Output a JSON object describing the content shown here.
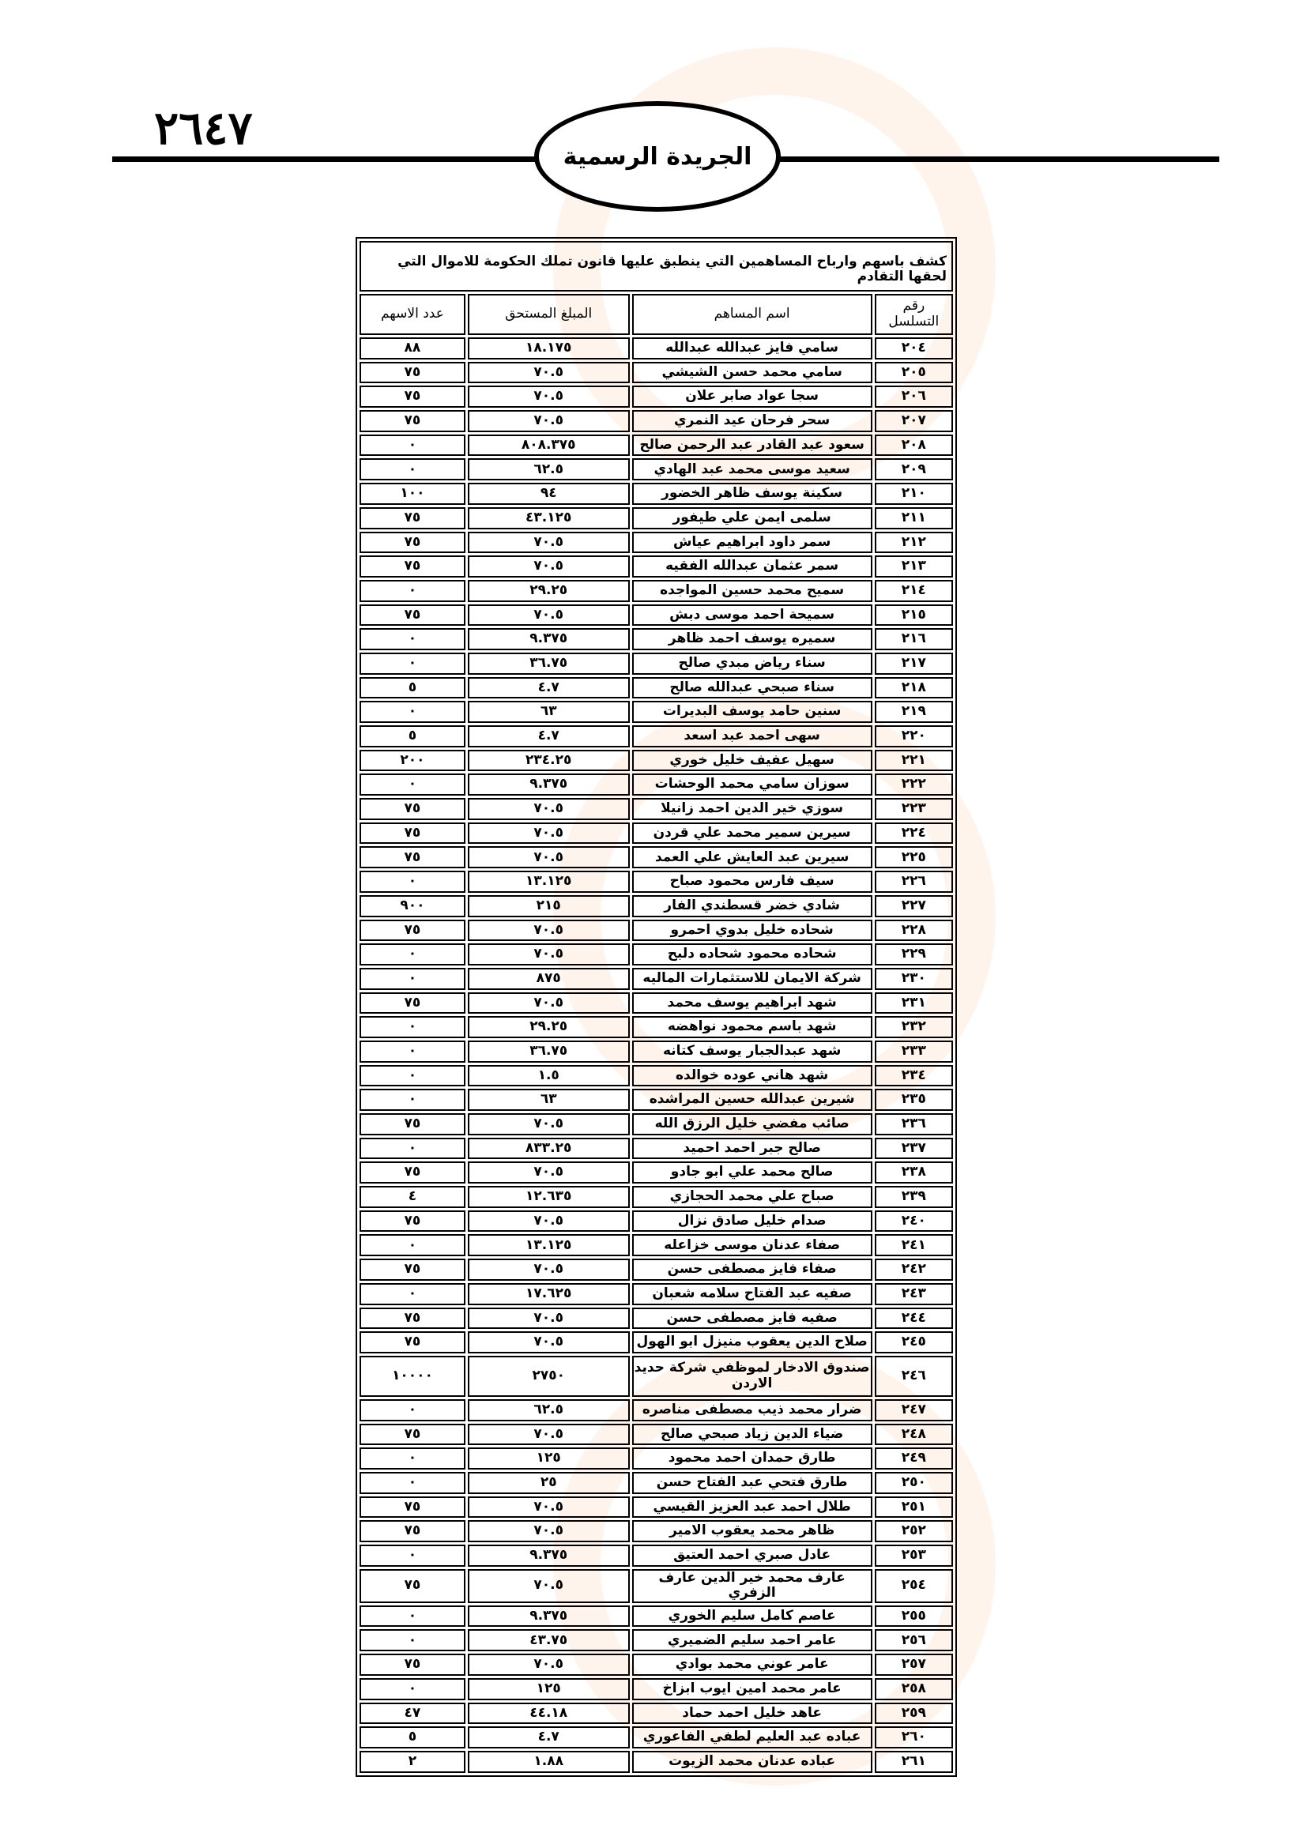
{
  "header": {
    "page_number": "٢٦٤٧",
    "gazette_title": "الجريدة الرسمية"
  },
  "table": {
    "title": "كشف باسهم وارباح المساهمين التي ينطبق عليها قانون تملك الحكومة للاموال التي لحقها التقادم",
    "columns": [
      "رقم التسلسل",
      "اسم المساهم",
      "المبلغ المستحق",
      "عدد الاسهم"
    ],
    "rows": [
      [
        "٢٠٤",
        "سامي فايز عبدالله عبدالله",
        "١٨.١٧٥",
        "٨٨"
      ],
      [
        "٢٠٥",
        "سامي محمد حسن الشيشي",
        "٧٠.٥",
        "٧٥"
      ],
      [
        "٢٠٦",
        "سجا عواد صابر علان",
        "٧٠.٥",
        "٧٥"
      ],
      [
        "٢٠٧",
        "سحر فرحان عيد النمري",
        "٧٠.٥",
        "٧٥"
      ],
      [
        "٢٠٨",
        "سعود عبد القادر عبد الرحمن صالح",
        "٨٠٨.٣٧٥",
        "٠"
      ],
      [
        "٢٠٩",
        "سعيد موسى محمد عبد الهادي",
        "٦٢.٥",
        "٠"
      ],
      [
        "٢١٠",
        "سكينة يوسف ظاهر الخضور",
        "٩٤",
        "١٠٠"
      ],
      [
        "٢١١",
        "سلمى ايمن علي طيفور",
        "٤٣.١٢٥",
        "٧٥"
      ],
      [
        "٢١٢",
        "سمر داود ابراهيم عياش",
        "٧٠.٥",
        "٧٥"
      ],
      [
        "٢١٣",
        "سمر عثمان عبدالله الفقيه",
        "٧٠.٥",
        "٧٥"
      ],
      [
        "٢١٤",
        "سميح محمد حسين المواجده",
        "٢٩.٢٥",
        "٠"
      ],
      [
        "٢١٥",
        "سميحة احمد موسى دبش",
        "٧٠.٥",
        "٧٥"
      ],
      [
        "٢١٦",
        "سميره يوسف احمد ظاهر",
        "٩.٣٧٥",
        "٠"
      ],
      [
        "٢١٧",
        "سناء رياض مبدي صالح",
        "٣٦.٧٥",
        "٠"
      ],
      [
        "٢١٨",
        "سناء صبحي عبدالله صالح",
        "٤.٧",
        "٥"
      ],
      [
        "٢١٩",
        "سنين حامد يوسف البديرات",
        "٦٣",
        "٠"
      ],
      [
        "٢٢٠",
        "سهى احمد عبد اسعد",
        "٤.٧",
        "٥"
      ],
      [
        "٢٢١",
        "سهيل عفيف خليل خوري",
        "٢٣٤.٢٥",
        "٢٠٠"
      ],
      [
        "٢٢٢",
        "سوزان سامي محمد الوحشات",
        "٩.٣٧٥",
        "٠"
      ],
      [
        "٢٢٣",
        "سوزي خير الدين احمد زانيلا",
        "٧٠.٥",
        "٧٥"
      ],
      [
        "٢٢٤",
        "سيرين سمير محمد علي قردن",
        "٧٠.٥",
        "٧٥"
      ],
      [
        "٢٢٥",
        "سيرين عبد العايش علي العمد",
        "٧٠.٥",
        "٧٥"
      ],
      [
        "٢٢٦",
        "سيف فارس محمود صباح",
        "١٣.١٢٥",
        "٠"
      ],
      [
        "٢٢٧",
        "شادي خضر قسطندي الفار",
        "٢١٥",
        "٩٠٠"
      ],
      [
        "٢٢٨",
        "شحاده خليل بدوي احمرو",
        "٧٠.٥",
        "٧٥"
      ],
      [
        "٢٢٩",
        "شحاده محمود شحاده دلبح",
        "٧٠.٥",
        "٠"
      ],
      [
        "٢٣٠",
        "شركة الايمان للاستثمارات الماليه",
        "٨٧٥",
        "٠"
      ],
      [
        "٢٣١",
        "شهد ابراهيم يوسف محمد",
        "٧٠.٥",
        "٧٥"
      ],
      [
        "٢٣٢",
        "شهد باسم محمود نواهضه",
        "٢٩.٢٥",
        "٠"
      ],
      [
        "٢٣٣",
        "شهد عبدالجبار يوسف كتانه",
        "٣٦.٧٥",
        "٠"
      ],
      [
        "٢٣٤",
        "شهد هاني عوده خوالده",
        "١.٥",
        "٠"
      ],
      [
        "٢٣٥",
        "شيرين عبدالله حسين المراشده",
        "٦٣",
        "٠"
      ],
      [
        "٢٣٦",
        "صائب مفضي خليل الرزق الله",
        "٧٠.٥",
        "٧٥"
      ],
      [
        "٢٣٧",
        "صالح جبر احمد احميد",
        "٨٣٣.٢٥",
        "٠"
      ],
      [
        "٢٣٨",
        "صالح محمد علي ابو جادو",
        "٧٠.٥",
        "٧٥"
      ],
      [
        "٢٣٩",
        "صباح علي محمد الحجازي",
        "١٢.٦٣٥",
        "٤"
      ],
      [
        "٢٤٠",
        "صدام خليل صادق نزال",
        "٧٠.٥",
        "٧٥"
      ],
      [
        "٢٤١",
        "صفاء عدنان موسى خزاعله",
        "١٣.١٢٥",
        "٠"
      ],
      [
        "٢٤٢",
        "صفاء فايز مصطفى حسن",
        "٧٠.٥",
        "٧٥"
      ],
      [
        "٢٤٣",
        "صفيه عبد الفتاح سلامه شعبان",
        "١٧.٦٢٥",
        "٠"
      ],
      [
        "٢٤٤",
        "صفيه فايز مصطفى حسن",
        "٧٠.٥",
        "٧٥"
      ],
      [
        "٢٤٥",
        "صلاح الدين يعقوب منيزل ابو الهول",
        "٧٠.٥",
        "٧٥"
      ],
      [
        "٢٤٦",
        "صندوق الادخار لموظفي شركة حديد الاردن",
        "٢٧٥٠",
        "١٠٠٠٠"
      ],
      [
        "٢٤٧",
        "ضرار محمد ذيب مصطفى مناصره",
        "٦٢.٥",
        "٠"
      ],
      [
        "٢٤٨",
        "ضياء الدين زياد صبحي صالح",
        "٧٠.٥",
        "٧٥"
      ],
      [
        "٢٤٩",
        "طارق حمدان احمد محمود",
        "١٢٥",
        "٠"
      ],
      [
        "٢٥٠",
        "طارق فتحي عبد الفتاح حسن",
        "٢٥",
        "٠"
      ],
      [
        "٢٥١",
        "طلال احمد عبد العزيز القيسي",
        "٧٠.٥",
        "٧٥"
      ],
      [
        "٢٥٢",
        "ظاهر محمد يعقوب الامير",
        "٧٠.٥",
        "٧٥"
      ],
      [
        "٢٥٣",
        "عادل صبري احمد العتيق",
        "٩.٣٧٥",
        "٠"
      ],
      [
        "٢٥٤",
        "عارف محمد خير الدين عارف الزفري",
        "٧٠.٥",
        "٧٥"
      ],
      [
        "٢٥٥",
        "عاصم كامل سليم الخوري",
        "٩.٣٧٥",
        "٠"
      ],
      [
        "٢٥٦",
        "عامر احمد سليم الضميري",
        "٤٣.٧٥",
        "٠"
      ],
      [
        "٢٥٧",
        "عامر عوني محمد بوادي",
        "٧٠.٥",
        "٧٥"
      ],
      [
        "٢٥٨",
        "عامر محمد امين ايوب ابزاخ",
        "١٢٥",
        "٠"
      ],
      [
        "٢٥٩",
        "عاهد خليل احمد حماد",
        "٤٤.١٨",
        "٤٧"
      ],
      [
        "٢٦٠",
        "عباده عبد العليم لطفي الفاعوري",
        "٤.٧",
        "٥"
      ],
      [
        "٢٦١",
        "عباده عدنان محمد الزيوت",
        "١.٨٨",
        "٢"
      ]
    ]
  },
  "watermark": {
    "color": "#f5aa6e"
  }
}
